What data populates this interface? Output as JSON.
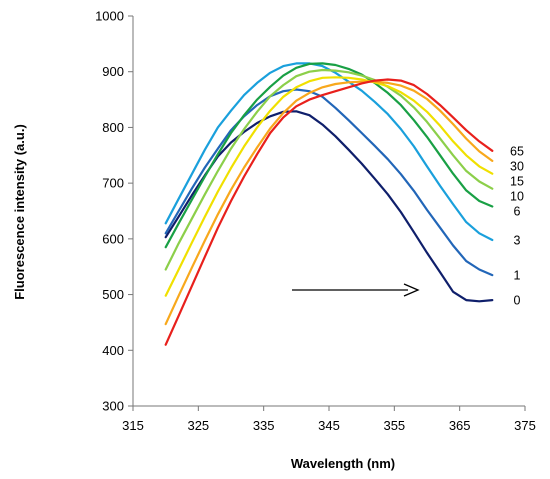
{
  "chart_data": {
    "type": "line",
    "title": "",
    "xlabel": "Wavelength (nm)",
    "ylabel": "Fluorescence  intensity (a.u.)",
    "xlim": [
      315,
      375
    ],
    "ylim": [
      300,
      1000
    ],
    "x_ticks": [
      "315",
      "325",
      "335",
      "345",
      "355",
      "365",
      "375"
    ],
    "y_ticks": [
      "300",
      "400",
      "500",
      "600",
      "700",
      "800",
      "900",
      "1000"
    ],
    "grid": false,
    "legend": "none",
    "x": [
      320,
      322,
      324,
      326,
      328,
      330,
      332,
      334,
      336,
      338,
      340,
      342,
      344,
      346,
      348,
      350,
      352,
      354,
      356,
      358,
      360,
      362,
      364,
      366,
      368,
      370
    ],
    "series": [
      {
        "label": "0",
        "color": "#0f1f6b",
        "values": [
          603,
          640,
          678,
          714,
          748,
          773,
          792,
          808,
          820,
          828,
          829,
          822,
          805,
          784,
          760,
          735,
          708,
          680,
          648,
          612,
          575,
          540,
          505,
          490,
          488,
          490
        ]
      },
      {
        "label": "1",
        "color": "#2266b8",
        "values": [
          610,
          650,
          690,
          728,
          762,
          795,
          820,
          840,
          856,
          865,
          868,
          865,
          855,
          835,
          813,
          790,
          767,
          743,
          716,
          686,
          652,
          620,
          588,
          560,
          545,
          535
        ]
      },
      {
        "label": "3",
        "color": "#1aa0dc",
        "values": [
          628,
          672,
          716,
          760,
          800,
          830,
          858,
          880,
          898,
          910,
          915,
          915,
          910,
          898,
          882,
          866,
          846,
          824,
          797,
          766,
          730,
          695,
          662,
          630,
          610,
          598
        ]
      },
      {
        "label": "6",
        "color": "#19a045",
        "values": [
          585,
          628,
          670,
          712,
          752,
          790,
          822,
          850,
          873,
          893,
          907,
          914,
          915,
          912,
          905,
          895,
          880,
          862,
          840,
          813,
          783,
          750,
          717,
          687,
          668,
          658
        ]
      },
      {
        "label": "10",
        "color": "#8ccf4a",
        "values": [
          545,
          592,
          636,
          680,
          722,
          762,
          797,
          828,
          856,
          876,
          892,
          900,
          903,
          902,
          899,
          893,
          885,
          873,
          857,
          836,
          810,
          780,
          750,
          722,
          703,
          690
        ]
      },
      {
        "label": "15",
        "color": "#f0e000",
        "values": [
          498,
          545,
          593,
          640,
          685,
          727,
          766,
          800,
          830,
          855,
          872,
          883,
          889,
          890,
          889,
          886,
          881,
          874,
          863,
          848,
          828,
          803,
          775,
          750,
          730,
          717
        ]
      },
      {
        "label": "30",
        "color": "#f8a81c",
        "values": [
          447,
          498,
          548,
          597,
          644,
          688,
          728,
          764,
          798,
          826,
          848,
          862,
          872,
          878,
          881,
          882,
          882,
          880,
          875,
          866,
          851,
          830,
          806,
          780,
          757,
          740
        ]
      },
      {
        "label": "65",
        "color": "#e8201c",
        "values": [
          410,
          462,
          515,
          568,
          620,
          668,
          712,
          752,
          790,
          818,
          838,
          850,
          858,
          865,
          872,
          879,
          884,
          886,
          884,
          876,
          860,
          840,
          818,
          795,
          775,
          758
        ]
      }
    ]
  }
}
